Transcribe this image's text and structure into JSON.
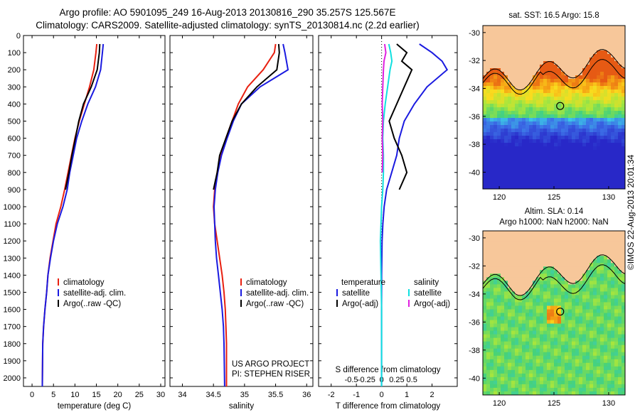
{
  "header": {
    "title_line1": "Argo profile: AO 5901095_249 16-Aug-2013 20130816_290 35.257S 125.567E",
    "title_line2": "Climatology: CARS2009. Satellite-adjusted climatology: synTS_20130814.nc (2.2d earlier)"
  },
  "credit": {
    "project": "US ARGO PROJECT",
    "pi": "PI: STEPHEN RISER",
    "imos": "©IMOS 22-Aug-2013 20:01:34"
  },
  "colors": {
    "climatology": "#e82010",
    "satellite": "#1a1ae0",
    "argo": "#000000",
    "temp_diff_argo": "#000000",
    "sat_sal": "#10e0e0",
    "argo_sal": "#e020e0",
    "land": "#f7c79a"
  },
  "chart_data": [
    {
      "type": "line",
      "xlabel": "temperature (deg C)",
      "ylabel": "",
      "xlim": [
        -2,
        31
      ],
      "ylim": [
        2050,
        0
      ],
      "xticks": [
        0,
        5,
        10,
        15,
        20,
        25,
        30
      ],
      "yticks": [
        0,
        100,
        200,
        300,
        400,
        500,
        600,
        700,
        800,
        900,
        1000,
        1100,
        1200,
        1300,
        1400,
        1500,
        1600,
        1700,
        1800,
        1900,
        2000
      ],
      "legend": [
        "climatology",
        "satellite-adj. clim.",
        "Argo(..raw -QC)"
      ],
      "series": [
        {
          "name": "climatology",
          "x": [
            15.1,
            14.9,
            14.4,
            13.4,
            12.2,
            11.0,
            10.0,
            9.2,
            8.4,
            7.6,
            6.7,
            5.6,
            4.9,
            4.2,
            3.7,
            3.4,
            3.0,
            2.7,
            2.5,
            2.4
          ],
          "y": [
            50,
            100,
            200,
            300,
            400,
            500,
            600,
            700,
            800,
            900,
            1000,
            1100,
            1200,
            1300,
            1400,
            1500,
            1600,
            1700,
            1800,
            2050
          ]
        },
        {
          "name": "satellite-adj. clim.",
          "x": [
            16.6,
            16.4,
            16.0,
            14.8,
            13.0,
            11.6,
            10.4,
            9.6,
            8.8,
            8.2,
            7.2,
            5.9,
            5.0,
            4.3,
            3.7,
            3.4,
            3.0,
            2.7,
            2.5,
            2.4
          ],
          "y": [
            50,
            100,
            200,
            300,
            400,
            500,
            600,
            700,
            800,
            900,
            1000,
            1100,
            1200,
            1300,
            1400,
            1500,
            1600,
            1700,
            1800,
            2050
          ]
        },
        {
          "name": "Argo(..raw -QC)",
          "x": [
            15.8,
            15.7,
            15.2,
            13.8,
            12.0,
            10.9,
            10.1,
            9.3,
            8.6,
            7.8
          ],
          "y": [
            50,
            100,
            200,
            300,
            400,
            500,
            600,
            700,
            800,
            900
          ]
        }
      ]
    },
    {
      "type": "line",
      "xlabel": "salinity",
      "xlim": [
        33.8,
        36.1
      ],
      "ylim": [
        2050,
        0
      ],
      "xticks": [
        34,
        34.5,
        35,
        35.5,
        36
      ],
      "legend": [
        "climatology",
        "satellite-adj. clim.",
        "Argo(..raw -QC)"
      ],
      "series": [
        {
          "name": "climatology",
          "x": [
            35.5,
            35.48,
            35.3,
            35.05,
            34.9,
            34.8,
            34.7,
            34.62,
            34.56,
            34.52,
            34.5,
            34.52,
            34.56,
            34.6,
            34.64,
            34.67,
            34.69,
            34.7,
            34.71,
            34.71
          ],
          "y": [
            50,
            100,
            200,
            300,
            400,
            500,
            600,
            700,
            800,
            900,
            1000,
            1100,
            1200,
            1300,
            1400,
            1500,
            1600,
            1700,
            1800,
            2050
          ]
        },
        {
          "name": "satellite-adj. clim.",
          "x": [
            35.62,
            35.65,
            35.7,
            35.25,
            34.95,
            34.82,
            34.72,
            34.63,
            34.57,
            34.53,
            34.51,
            34.52,
            34.53,
            34.55,
            34.58,
            34.61,
            34.64,
            34.66,
            34.67,
            34.68
          ],
          "y": [
            50,
            100,
            200,
            300,
            400,
            500,
            600,
            700,
            800,
            900,
            1000,
            1100,
            1200,
            1300,
            1400,
            1500,
            1600,
            1700,
            1800,
            2050
          ]
        },
        {
          "name": "Argo(..raw -QC)",
          "x": [
            35.55,
            35.56,
            35.52,
            35.2,
            34.95,
            34.8,
            34.7,
            34.6,
            34.56,
            34.5
          ],
          "y": [
            50,
            100,
            200,
            300,
            400,
            500,
            600,
            700,
            800,
            900
          ]
        }
      ]
    },
    {
      "type": "line",
      "xlabel": "T difference from climatology",
      "x2label": "S difference from climatology",
      "xlim": [
        -2.5,
        3
      ],
      "ylim": [
        2050,
        0
      ],
      "xticks": [
        -2,
        -1,
        0,
        1,
        2
      ],
      "x2ticks": [
        -0.5,
        -0.25,
        0,
        0.25,
        0.5
      ],
      "x2tick_labels": [
        "-0.5",
        "-0.25",
        "0",
        "0.25",
        "0.5"
      ],
      "legend_temperature_title": "temperature",
      "legend_salinity_title": "salinity",
      "legend": [
        "satellite",
        "Argo(-adj)",
        "satellite",
        "Argo(-adj)"
      ],
      "series": [
        {
          "name": "satellite",
          "x": [
            1.5,
            2.0,
            2.4,
            2.6,
            1.8,
            1.3,
            0.9,
            0.7,
            0.6,
            0.4,
            0.2,
            0.1,
            0.05,
            0.02,
            0.0,
            0.0,
            0.0,
            0.0
          ],
          "y": [
            50,
            100,
            150,
            200,
            300,
            400,
            500,
            600,
            700,
            800,
            900,
            1000,
            1100,
            1200,
            1400,
            1600,
            1800,
            2050
          ]
        },
        {
          "name": "Argo(-adj)",
          "x": [
            0.6,
            1.0,
            0.8,
            1.2,
            0.9,
            0.6,
            0.3,
            0.5,
            0.8,
            1.0,
            0.7
          ],
          "y": [
            50,
            100,
            150,
            200,
            300,
            400,
            500,
            600,
            700,
            800,
            900
          ]
        },
        {
          "name": "satellite (salinity)",
          "x": [
            0.12,
            0.15,
            0.17,
            0.14,
            0.1,
            0.06,
            0.03,
            0.02,
            0.03,
            0.03,
            0.02,
            0.0,
            -0.01,
            -0.02,
            -0.01,
            0.0,
            0.0,
            0.0
          ],
          "y": [
            50,
            100,
            150,
            200,
            300,
            400,
            500,
            600,
            700,
            800,
            900,
            1000,
            1100,
            1200,
            1400,
            1600,
            1800,
            2050
          ]
        },
        {
          "name": "Argo(-adj) (salinity)",
          "x": [
            0.05,
            0.07,
            0.04,
            0.03,
            0.02,
            0.01,
            0.02,
            0.01,
            0.02,
            0.01
          ],
          "y": [
            50,
            100,
            150,
            200,
            300,
            400,
            500,
            600,
            700,
            800
          ]
        }
      ]
    },
    {
      "type": "heatmap",
      "title": "sat. SST: 16.5  Argo: 15.8",
      "xticks": [
        120,
        125,
        130
      ],
      "yticks": [
        -30,
        -32,
        -34,
        -36,
        -38,
        -40
      ],
      "xlim": [
        118.5,
        131.5
      ],
      "ylim": [
        -41.2,
        -29.5
      ],
      "argo_marker": {
        "lon": 125.567,
        "lat": -35.257
      }
    },
    {
      "type": "heatmap",
      "title": "Altim. SLA: 0.14",
      "subtitle": "Argo h1000: NaN  h2000: NaN",
      "xticks": [
        120,
        125,
        130
      ],
      "yticks": [
        -30,
        -32,
        -34,
        -36,
        -38,
        -40
      ],
      "xlim": [
        118.5,
        131.5
      ],
      "ylim": [
        -41.2,
        -29.5
      ],
      "argo_marker": {
        "lon": 125.567,
        "lat": -35.257
      }
    }
  ]
}
